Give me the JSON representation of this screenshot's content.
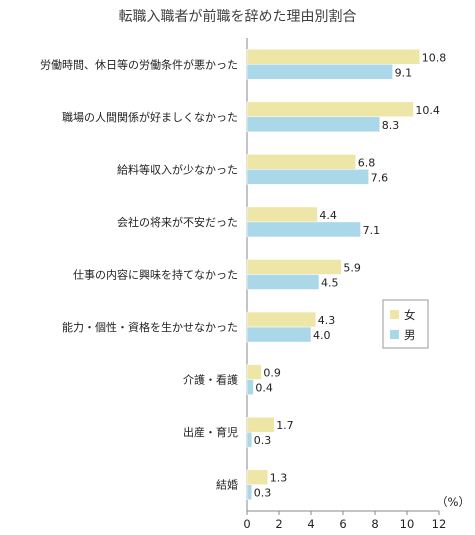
{
  "chart_data": {
    "type": "bar",
    "orientation": "horizontal",
    "title": "転職入職者が前職を辞めた理由別割合",
    "categories": [
      "労働時間、休日等の労働条件が悪かった",
      "職場の人間関係が好ましくなかった",
      "給料等収入が少なかった",
      "会社の将来が不安だった",
      "仕事の内容に興味を持てなかった",
      "能力・個性・資格を生かせなかった",
      "介護・看護",
      "出産・育児",
      "結婚"
    ],
    "series": [
      {
        "name": "女",
        "color": "#eee6a6",
        "values": [
          10.8,
          10.4,
          6.8,
          4.4,
          5.9,
          4.3,
          0.9,
          1.7,
          1.3
        ],
        "labels": [
          "10.8",
          "10.4",
          "6.8",
          "4.4",
          "5.9",
          "4.3",
          "0.9",
          "1.7",
          "1.3"
        ]
      },
      {
        "name": "男",
        "color": "#aad8e8",
        "values": [
          9.1,
          8.3,
          7.6,
          7.1,
          4.5,
          4.0,
          0.4,
          0.3,
          0.3
        ],
        "labels": [
          "9.1",
          "8.3",
          "7.6",
          "7.1",
          "4.5",
          "4.0",
          "0.4",
          "0.3",
          "0.3"
        ]
      }
    ],
    "xlim": [
      0,
      12
    ],
    "xticks": [
      "0",
      "2",
      "4",
      "6",
      "8",
      "10",
      "12"
    ],
    "unit": "（%）",
    "legend_position": "right",
    "grid": false
  }
}
